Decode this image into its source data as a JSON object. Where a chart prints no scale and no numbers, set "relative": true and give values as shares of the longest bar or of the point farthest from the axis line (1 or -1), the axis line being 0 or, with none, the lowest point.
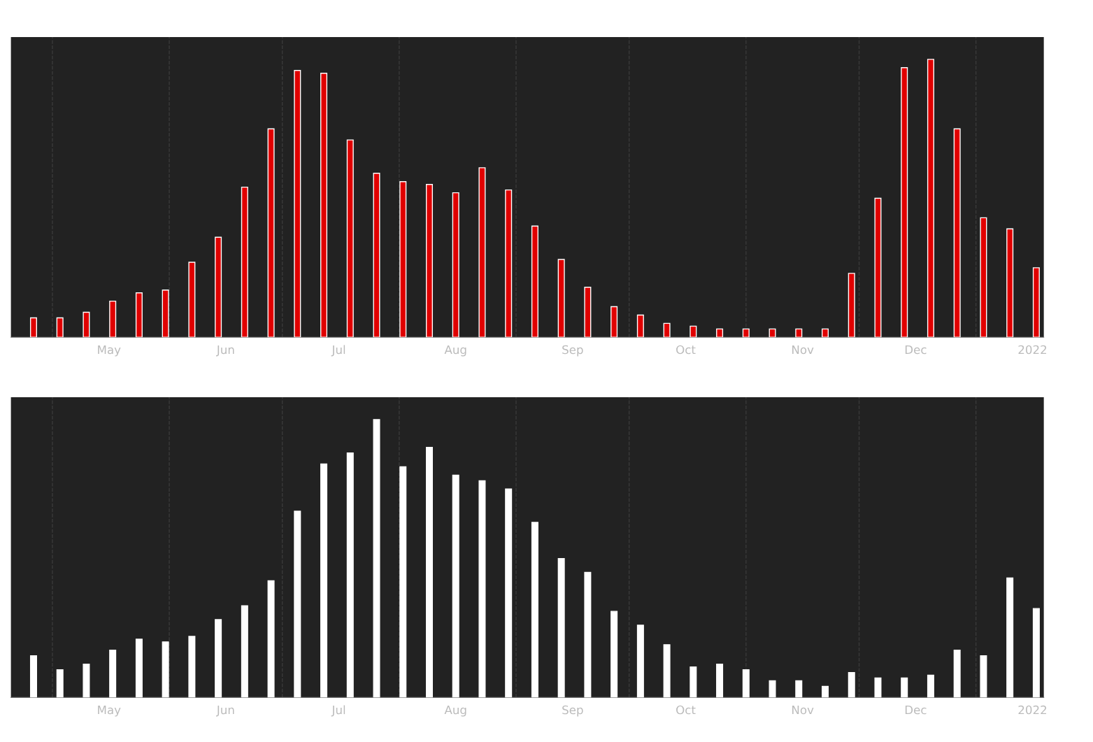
{
  "chart_data": [
    {
      "type": "bar",
      "relative": true,
      "grid": "x",
      "color": "#e00000",
      "x": [
        "2021-04-26",
        "2021-05-03",
        "2021-05-10",
        "2021-05-17",
        "2021-05-24",
        "2021-05-31",
        "2021-06-07",
        "2021-06-14",
        "2021-06-21",
        "2021-06-28",
        "2021-07-05",
        "2021-07-12",
        "2021-07-19",
        "2021-07-26",
        "2021-08-02",
        "2021-08-09",
        "2021-08-16",
        "2021-08-23",
        "2021-08-30",
        "2021-09-06",
        "2021-09-13",
        "2021-09-20",
        "2021-09-27",
        "2021-10-04",
        "2021-10-11",
        "2021-10-18",
        "2021-10-25",
        "2021-11-01",
        "2021-11-08",
        "2021-11-15",
        "2021-11-22",
        "2021-11-29",
        "2021-12-06",
        "2021-12-13",
        "2021-12-20",
        "2021-12-27",
        "2022-01-03",
        "2022-01-10",
        "2022-01-17"
      ],
      "values": [
        0.07,
        0.07,
        0.09,
        0.13,
        0.16,
        0.17,
        0.27,
        0.36,
        0.54,
        0.75,
        0.96,
        0.95,
        0.71,
        0.59,
        0.56,
        0.55,
        0.52,
        0.61,
        0.53,
        0.4,
        0.28,
        0.18,
        0.11,
        0.08,
        0.05,
        0.04,
        0.03,
        0.03,
        0.03,
        0.03,
        0.03,
        0.23,
        0.5,
        0.97,
        1,
        0.75,
        0.43,
        0.39,
        0.25
      ],
      "xlim": [
        "2021-04-20",
        "2022-01-19"
      ],
      "xticks": [
        {
          "value": "2021-05-01",
          "label": null
        },
        {
          "value": "2021-05-16",
          "label": "May"
        },
        {
          "value": "2021-06-01",
          "label": null
        },
        {
          "value": "2021-06-16",
          "label": "Jun"
        },
        {
          "value": "2021-07-01",
          "label": null
        },
        {
          "value": "2021-07-16",
          "label": "Jul"
        },
        {
          "value": "2021-08-01",
          "label": null
        },
        {
          "value": "2021-08-16",
          "label": "Aug"
        },
        {
          "value": "2021-09-01",
          "label": null
        },
        {
          "value": "2021-09-16",
          "label": "Sep"
        },
        {
          "value": "2021-10-01",
          "label": null
        },
        {
          "value": "2021-10-16",
          "label": "Oct"
        },
        {
          "value": "2021-11-01",
          "label": null
        },
        {
          "value": "2021-11-16",
          "label": "Nov"
        },
        {
          "value": "2021-12-01",
          "label": null
        },
        {
          "value": "2021-12-16",
          "label": "Dec"
        },
        {
          "value": "2022-01-01",
          "label": null
        },
        {
          "value": "2022-01-16",
          "label": "2022"
        }
      ]
    },
    {
      "type": "bar",
      "relative": true,
      "grid": "x",
      "color": "#ffffff",
      "x": [
        "2021-04-26",
        "2021-05-03",
        "2021-05-10",
        "2021-05-17",
        "2021-05-24",
        "2021-05-31",
        "2021-06-07",
        "2021-06-14",
        "2021-06-21",
        "2021-06-28",
        "2021-07-05",
        "2021-07-12",
        "2021-07-19",
        "2021-07-26",
        "2021-08-02",
        "2021-08-09",
        "2021-08-16",
        "2021-08-23",
        "2021-08-30",
        "2021-09-06",
        "2021-09-13",
        "2021-09-20",
        "2021-09-27",
        "2021-10-04",
        "2021-10-11",
        "2021-10-18",
        "2021-10-25",
        "2021-11-01",
        "2021-11-08",
        "2021-11-15",
        "2021-11-22",
        "2021-11-29",
        "2021-12-06",
        "2021-12-13",
        "2021-12-20",
        "2021-12-27",
        "2022-01-03",
        "2022-01-10",
        "2022-01-17"
      ],
      "values": [
        0.15,
        0.1,
        0.12,
        0.17,
        0.21,
        0.2,
        0.22,
        0.28,
        0.33,
        0.42,
        0.67,
        0.84,
        0.88,
        1,
        0.83,
        0.9,
        0.8,
        0.78,
        0.75,
        0.63,
        0.5,
        0.45,
        0.31,
        0.26,
        0.19,
        0.11,
        0.12,
        0.1,
        0.06,
        0.06,
        0.04,
        0.09,
        0.07,
        0.07,
        0.08,
        0.17,
        0.15,
        0.43,
        0.32
      ],
      "xlim": [
        "2021-04-20",
        "2022-01-19"
      ],
      "xticks": [
        {
          "value": "2021-05-01",
          "label": null
        },
        {
          "value": "2021-05-16",
          "label": "May"
        },
        {
          "value": "2021-06-01",
          "label": null
        },
        {
          "value": "2021-06-16",
          "label": "Jun"
        },
        {
          "value": "2021-07-01",
          "label": null
        },
        {
          "value": "2021-07-16",
          "label": "Jul"
        },
        {
          "value": "2021-08-01",
          "label": null
        },
        {
          "value": "2021-08-16",
          "label": "Aug"
        },
        {
          "value": "2021-09-01",
          "label": null
        },
        {
          "value": "2021-09-16",
          "label": "Sep"
        },
        {
          "value": "2021-10-01",
          "label": null
        },
        {
          "value": "2021-10-16",
          "label": "Oct"
        },
        {
          "value": "2021-11-01",
          "label": null
        },
        {
          "value": "2021-11-16",
          "label": "Nov"
        },
        {
          "value": "2021-12-01",
          "label": null
        },
        {
          "value": "2021-12-16",
          "label": "Dec"
        },
        {
          "value": "2022-01-01",
          "label": null
        },
        {
          "value": "2022-01-16",
          "label": "2022"
        }
      ]
    }
  ]
}
